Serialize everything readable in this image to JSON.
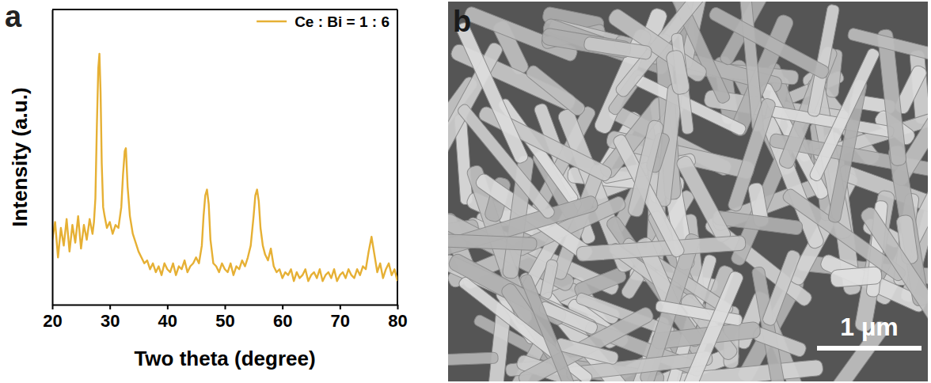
{
  "chart_data": {
    "type": "line",
    "x_label": "Two theta (degree)",
    "y_label": "Intensity (a.u.)",
    "xlim": [
      20,
      80
    ],
    "xticks": [
      20,
      30,
      40,
      50,
      60,
      70,
      80
    ],
    "ylim": [
      0,
      100
    ],
    "yticks": [],
    "tick_labels": "x",
    "grid": false,
    "legend": "upper right",
    "x": [
      20,
      20.5,
      21,
      21.5,
      22,
      22.5,
      23,
      23.5,
      24,
      24.5,
      25,
      25.5,
      26,
      26.5,
      27,
      27.25,
      27.5,
      27.75,
      28,
      28.2,
      28.4,
      28.6,
      28.85,
      29.1,
      29.5,
      30,
      30.5,
      31,
      31.5,
      32,
      32.3,
      32.6,
      32.8,
      33.1,
      33.5,
      34,
      34.5,
      35,
      35.5,
      36,
      36.5,
      37,
      37.5,
      38,
      38.5,
      39,
      39.5,
      40,
      40.5,
      41,
      41.5,
      42,
      42.5,
      43,
      43.5,
      44,
      44.5,
      45,
      45.5,
      46,
      46.3,
      46.6,
      46.9,
      47.2,
      47.5,
      48,
      48.5,
      49,
      49.5,
      50,
      50.5,
      51,
      51.5,
      52,
      52.5,
      53,
      53.5,
      54,
      54.5,
      55,
      55.3,
      55.6,
      55.9,
      56.2,
      56.6,
      57,
      57.5,
      58,
      58.5,
      59,
      59.5,
      60,
      60.5,
      61,
      61.5,
      62,
      62.5,
      63,
      63.5,
      64,
      64.5,
      65,
      65.5,
      66,
      66.5,
      67,
      67.5,
      68,
      68.5,
      69,
      69.5,
      70,
      70.5,
      71,
      71.5,
      72,
      72.5,
      73,
      73.5,
      74,
      74.5,
      75,
      75.5,
      76,
      76.5,
      77,
      77.5,
      78,
      78.5,
      79,
      79.5,
      80
    ],
    "series": [
      {
        "name": "Ce : Bi = 1 : 6",
        "color": "#e6b034",
        "values": [
          22,
          28,
          16,
          26,
          20,
          29,
          18,
          27,
          21,
          30,
          19,
          27,
          22,
          29,
          24,
          28,
          36,
          60,
          80,
          85,
          72,
          48,
          33,
          30,
          26,
          28,
          24,
          27,
          26,
          33,
          44,
          52,
          53,
          40,
          30,
          24,
          21,
          18,
          16,
          14,
          15,
          12,
          14,
          11,
          13,
          10,
          14,
          12,
          11,
          14,
          10,
          13,
          12,
          15,
          11,
          13,
          14,
          16,
          14,
          20,
          30,
          37,
          39,
          34,
          22,
          14,
          13,
          11,
          14,
          12,
          11,
          14,
          10,
          13,
          12,
          15,
          13,
          16,
          20,
          30,
          37,
          39,
          35,
          26,
          20,
          17,
          15,
          19,
          13,
          11,
          12,
          9,
          11,
          10,
          12,
          8,
          11,
          9,
          10,
          12,
          8,
          10,
          11,
          9,
          12,
          8,
          10,
          11,
          9,
          12,
          8,
          10,
          11,
          9,
          12,
          10,
          9,
          12,
          10,
          13,
          12,
          18,
          23,
          17,
          11,
          14,
          9,
          12,
          14,
          10,
          12,
          8
        ]
      }
    ]
  },
  "panel_labels": [
    "a",
    "b"
  ],
  "micrograph": {
    "scale_bar": "1 µm"
  }
}
